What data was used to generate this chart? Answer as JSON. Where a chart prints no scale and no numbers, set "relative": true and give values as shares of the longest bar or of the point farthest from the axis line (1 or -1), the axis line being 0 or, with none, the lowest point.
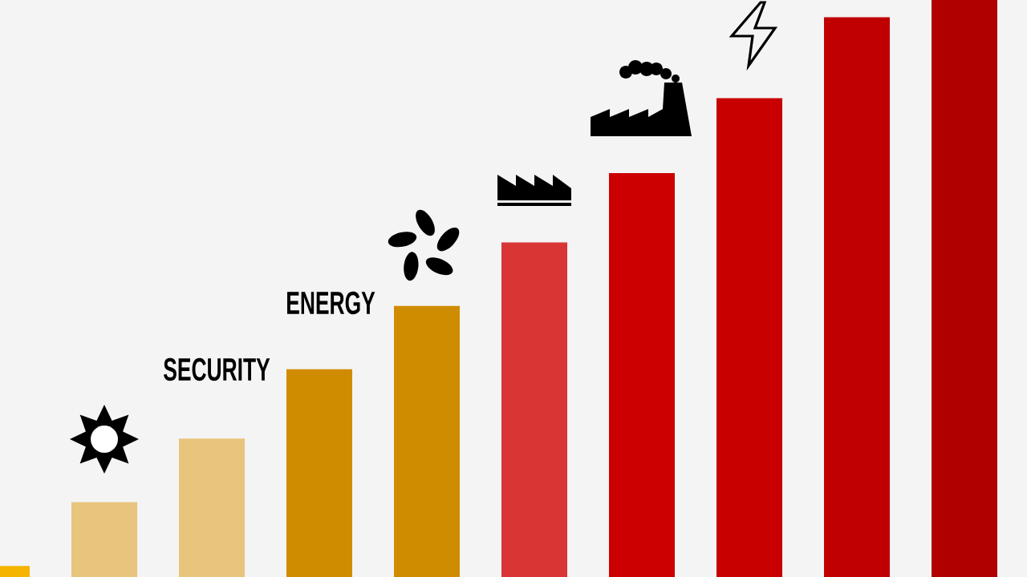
{
  "chart_data": {
    "type": "bar",
    "relative": true,
    "categories": [
      null,
      null,
      null,
      null,
      null,
      null,
      null,
      null,
      null,
      null
    ],
    "values": [
      0.019,
      0.13,
      0.24,
      0.36,
      0.47,
      0.58,
      0.7,
      0.83,
      0.97,
      1
    ],
    "colors": [
      "#f5b400",
      "#e8c47c",
      "#e8c47c",
      "#d08c00",
      "#d08c00",
      "#d93535",
      "#cc0000",
      "#c80000",
      "#c00000",
      "#b00000"
    ],
    "annotations": [
      "SECURITY",
      "ENERGY"
    ]
  }
}
